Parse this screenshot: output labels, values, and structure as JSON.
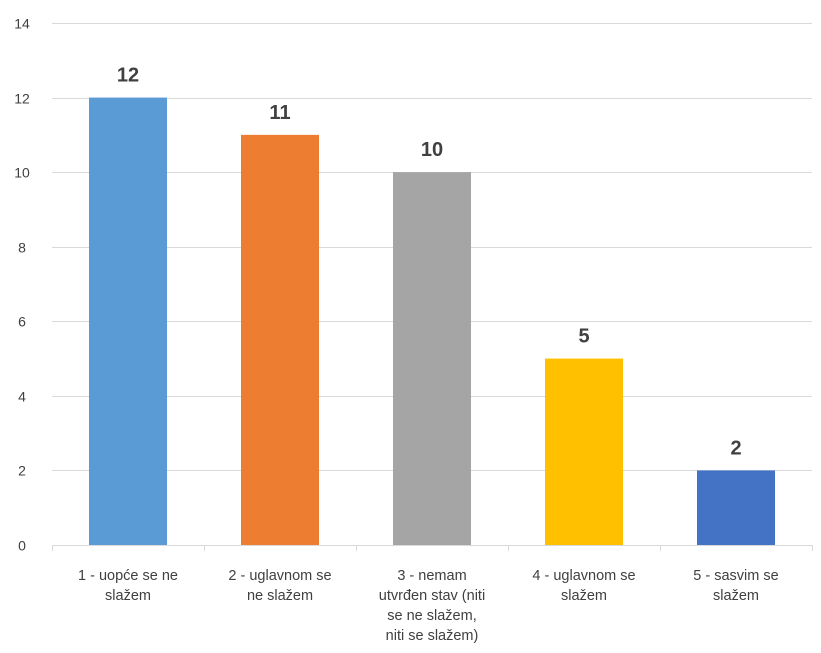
{
  "chart_data": {
    "type": "bar",
    "categories": [
      [
        "1 - uopće se ne",
        "slažem"
      ],
      [
        "2 - uglavnom se",
        "ne slažem"
      ],
      [
        "3 - nemam",
        "utvrđen stav (niti",
        "se ne slažem,",
        "niti se slažem)"
      ],
      [
        "4 - uglavnom se",
        "slažem"
      ],
      [
        "5 - sasvim se",
        "slažem"
      ]
    ],
    "values": [
      12,
      11,
      10,
      5,
      2
    ],
    "colors": [
      "#5B9BD5",
      "#ED7D31",
      "#A5A5A5",
      "#FFC000",
      "#4472C4"
    ],
    "ylim": [
      0,
      14
    ],
    "yticks": [
      0,
      2,
      4,
      6,
      8,
      10,
      12,
      14
    ],
    "grid": true,
    "legend": "none",
    "title": "",
    "xlabel": "",
    "ylabel": ""
  }
}
